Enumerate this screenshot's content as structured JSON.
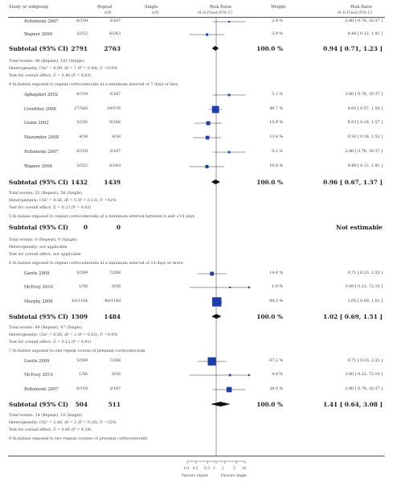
{
  "header": {
    "study": "Study or subgroup",
    "repeat": "Repeat",
    "single": "Single",
    "rr": "Risk Ratio",
    "weight": "Weight",
    "rr2": "Risk Ratio",
    "repeat_n": "n/N",
    "single_n": "n/N",
    "rr_method": "M-H,Fixed,95% CI",
    "rr2_method": "M-H,Fixed,95% CI"
  },
  "rows": [
    {
      "kind": "study",
      "name": "Peltoniemi 2007",
      "repeat": "8/159",
      "single": "3/167",
      "weight": "2.8 %",
      "ci": "2.80 [ 0.76, 10.37 ]",
      "est": 2.8,
      "lo": 0.76,
      "hi": 10.37,
      "w": 2.8
    },
    {
      "kind": "study",
      "name": "Wapner 2006",
      "repeat": "3/252",
      "single": "6/243",
      "weight": "5.9 %",
      "ci": "0.48 [ 0.12, 1.91 ]",
      "est": 0.48,
      "lo": 0.12,
      "hi": 1.91,
      "w": 5.9
    },
    {
      "kind": "subtotal",
      "name": "Subtotal (95% CI)",
      "repeat": "2791",
      "single": "2763",
      "weight": "100.0 %",
      "ci": "0.94 [ 0.71, 1.23 ]",
      "est": 0.94,
      "lo": 0.71,
      "hi": 1.23
    },
    {
      "kind": "note",
      "text": "Total events: 96 (Repeat), 102 (Single)"
    },
    {
      "kind": "note",
      "text": "Heterogeneity: Chi² = 6.89, df = 7 (P = 0.44); I² =0.0%"
    },
    {
      "kind": "note",
      "text": "Test for overall effect: Z = 0.48 (P = 0.63)"
    },
    {
      "kind": "group",
      "text": "4 In babies exposed to repeat corticosteroids at a minimum interval of 7 days or less"
    },
    {
      "kind": "study",
      "name": "Aghajafari 2002",
      "repeat": "8/159",
      "single": "3/167",
      "weight": "5.1 %",
      "ci": "2.80 [ 0.76, 10.37 ]",
      "est": 2.8,
      "lo": 0.76,
      "hi": 10.37,
      "w": 5.1
    },
    {
      "kind": "study",
      "name": "Crowther 2006",
      "repeat": "27/568",
      "single": "29/578",
      "weight": "49.7 %",
      "ci": "0.95 [ 0.57, 1.58 ]",
      "est": 0.95,
      "lo": 0.57,
      "hi": 1.58,
      "w": 49.7
    },
    {
      "kind": "study",
      "name": "Guinn 2002",
      "repeat": "5/256",
      "single": "9/246",
      "weight": "15.9 %",
      "ci": "0.53 [ 0.18, 1.57 ]",
      "est": 0.53,
      "lo": 0.18,
      "hi": 1.57,
      "w": 15.9
    },
    {
      "kind": "study",
      "name": "Mazumder 2008",
      "repeat": "4/38",
      "single": "8/38",
      "weight": "13.8 %",
      "ci": "0.50 [ 0.16, 1.52 ]",
      "est": 0.5,
      "lo": 0.16,
      "hi": 1.52,
      "w": 13.8
    },
    {
      "kind": "study",
      "name": "Peltoniemi 2007",
      "repeat": "8/159",
      "single": "3/167",
      "weight": "5.1 %",
      "ci": "2.80 [ 0.76, 10.37 ]",
      "est": 2.8,
      "lo": 0.76,
      "hi": 10.37,
      "w": 5.1
    },
    {
      "kind": "study",
      "name": "Wapner 2006",
      "repeat": "3/252",
      "single": "6/243",
      "weight": "10.6 %",
      "ci": "0.48 [ 0.12, 1.91 ]",
      "est": 0.48,
      "lo": 0.12,
      "hi": 1.91,
      "w": 10.6
    },
    {
      "kind": "subtotal",
      "name": "Subtotal (95% CI)",
      "repeat": "1432",
      "single": "1439",
      "weight": "100.0 %",
      "ci": "0.96 [ 0.67, 1.37 ]",
      "est": 0.96,
      "lo": 0.67,
      "hi": 1.37
    },
    {
      "kind": "note",
      "text": "Total events: 55 (Repeat), 58 (Single)"
    },
    {
      "kind": "note",
      "text": "Heterogeneity: Chi² = 8.56, df = 5 (P = 0.13); I² =42%"
    },
    {
      "kind": "note",
      "text": "Test for overall effect: Z = 0.23 (P = 0.82)"
    },
    {
      "kind": "group",
      "text": "5 In babies exposed to repeat corticosteroids at a minimum interval between 8 and <14 days"
    },
    {
      "kind": "subtotal",
      "name": "Subtotal (95% CI)",
      "repeat": "0",
      "single": "0",
      "weight": "",
      "ci": "Not estimable"
    },
    {
      "kind": "note",
      "text": "Total events: 0 (Repeat), 0 (Single)"
    },
    {
      "kind": "note",
      "text": "Heterogeneity: not applicable"
    },
    {
      "kind": "note",
      "text": "Test for overall effect: not applicable"
    },
    {
      "kind": "group",
      "text": "6 In babies exposed to repeat corticosteroids at a minimum interval of 14 days or more"
    },
    {
      "kind": "study",
      "name": "Garite 2009",
      "repeat": "5/289",
      "single": "7/288",
      "weight": "14.6 %",
      "ci": "0.71 [ 0.23, 2.22 ]",
      "est": 0.71,
      "lo": 0.23,
      "hi": 2.22,
      "w": 14.6
    },
    {
      "kind": "study",
      "name": "McEvoy 2010",
      "repeat": "1/56",
      "single": "0/56",
      "weight": "1.0 %",
      "ci": "3.00 [ 0.12, 72.10 ]",
      "est": 3.0,
      "lo": 0.12,
      "hi": 72.1,
      "w": 1.0
    },
    {
      "kind": "study",
      "name": "Murphy 2008",
      "repeat": "43/1164",
      "single": "40/1140",
      "weight": "84.3 %",
      "ci": "1.05 [ 0.69, 1.61 ]",
      "est": 1.05,
      "lo": 0.69,
      "hi": 1.61,
      "w": 84.3
    },
    {
      "kind": "subtotal",
      "name": "Subtotal (95% CI)",
      "repeat": "1509",
      "single": "1484",
      "weight": "100.0 %",
      "ci": "1.02 [ 0.69, 1.51 ]",
      "est": 1.02,
      "lo": 0.69,
      "hi": 1.51
    },
    {
      "kind": "note",
      "text": "Total events: 49 (Repeat), 47 (Single)"
    },
    {
      "kind": "note",
      "text": "Heterogeneity: Chi² = 0.85, df = 2 (P = 0.65); I² =0.0%"
    },
    {
      "kind": "note",
      "text": "Test for overall effect: Z = 0.12 (P = 0.91)"
    },
    {
      "kind": "group",
      "text": "7 In babies exposed to one repeat course of prenatal corticosteroids"
    },
    {
      "kind": "study",
      "name": "Garite 2009",
      "repeat": "5/289",
      "single": "7/288",
      "weight": "67.2 %",
      "ci": "0.71 [ 0.23, 2.22 ]",
      "est": 0.71,
      "lo": 0.23,
      "hi": 2.22,
      "w": 67.2
    },
    {
      "kind": "study",
      "name": "McEvoy 2010",
      "repeat": "1/56",
      "single": "0/56",
      "weight": "4.8 %",
      "ci": "3.00 [ 0.12, 72.10 ]",
      "est": 3.0,
      "lo": 0.12,
      "hi": 72.1,
      "w": 4.8
    },
    {
      "kind": "study",
      "name": "Peltoniemi 2007",
      "repeat": "8/159",
      "single": "3/167",
      "weight": "28.0 %",
      "ci": "2.80 [ 0.76, 10.37 ]",
      "est": 2.8,
      "lo": 0.76,
      "hi": 10.37,
      "w": 28.0
    },
    {
      "kind": "subtotal",
      "name": "Subtotal (95% CI)",
      "repeat": "504",
      "single": "511",
      "weight": "100.0 %",
      "ci": "1.41 [ 0.64, 3.08 ]",
      "est": 1.41,
      "lo": 0.64,
      "hi": 3.08
    },
    {
      "kind": "note",
      "text": "Total events: 14 (Repeat), 10 (Single)"
    },
    {
      "kind": "note",
      "text": "Heterogeneity: Chi² = 2.66, df = 2 (P = 0.26); I² =25%"
    },
    {
      "kind": "note",
      "text": "Test for overall effect: Z = 0.86 (P = 0.39)"
    },
    {
      "kind": "group",
      "text": "8 In babies exposed to two repeat courses of prenatal corticosteroids"
    }
  ],
  "axis": {
    "ticks": [
      "0.1",
      "0.2",
      "0.5",
      "1",
      "2",
      "5",
      "10"
    ],
    "favours_left": "Favours repeat",
    "favours_right": "Favours single"
  },
  "colors": {
    "marker": "#1f3fa8",
    "line": "#333333"
  }
}
